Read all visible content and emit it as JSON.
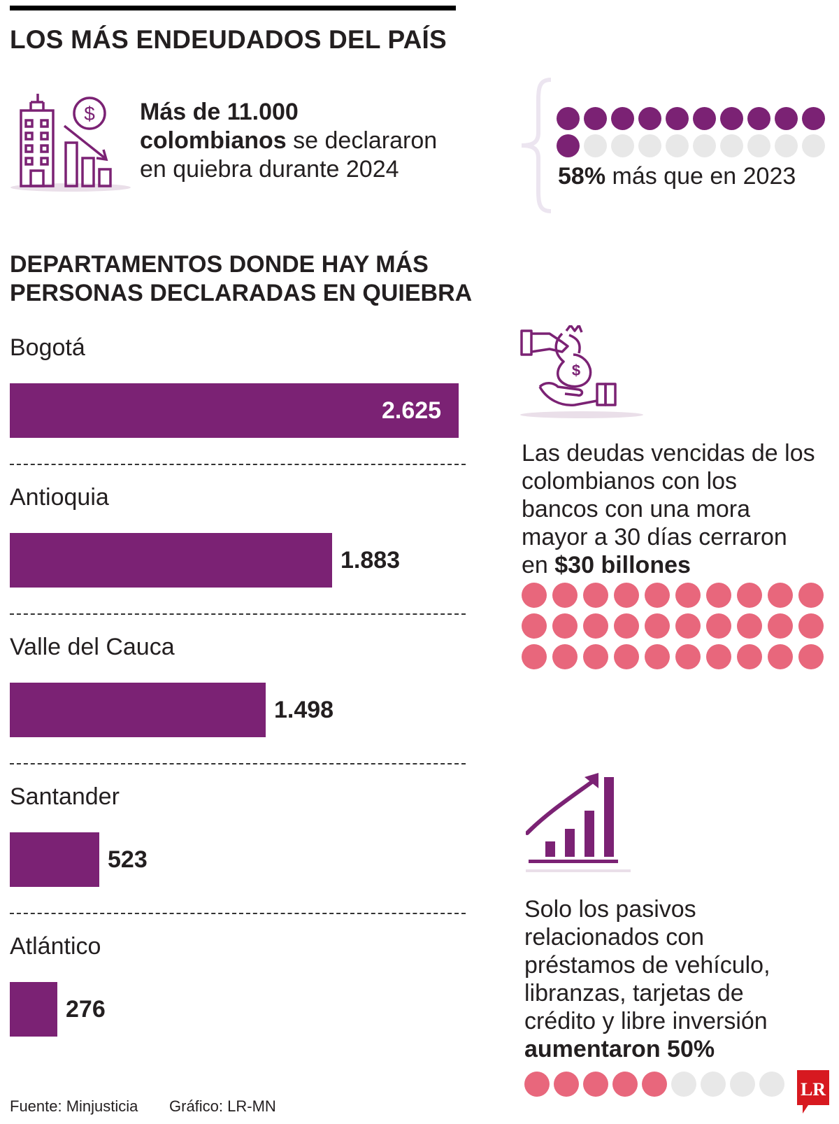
{
  "header": {
    "title": "LOS MÁS ENDEUDADOS DEL PAÍS"
  },
  "bankruptcy_stat": {
    "bold_line1": "Más de 11.000",
    "bold_line2": "colombianos",
    "rest_line2": " se declararon",
    "line3": "en quiebra durante 2024"
  },
  "increase_stat": {
    "bold": "58%",
    "rest": " más que en 2023",
    "dots_total": 20,
    "dots_filled": 11,
    "filled_color": "#7b2274",
    "empty_color": "#e8e8e8"
  },
  "chart_data": {
    "type": "bar",
    "title": "DEPARTAMENTOS DONDE HAY MÁS PERSONAS DECLARADAS EN QUIEBRA",
    "title_line1": "DEPARTAMENTOS DONDE HAY MÁS",
    "title_line2": "PERSONAS DECLARADAS EN QUIEBRA",
    "orientation": "horizontal",
    "categories": [
      "Bogotá",
      "Antioquia",
      "Valle del Cauca",
      "Santander",
      "Atlántico"
    ],
    "values": [
      2625,
      1883,
      1498,
      523,
      276
    ],
    "value_labels": [
      "2.625",
      "1.883",
      "1.498",
      "523",
      "276"
    ],
    "bar_color": "#7b2274",
    "xlim": [
      0,
      2625
    ]
  },
  "debt_stat": {
    "line1": "Las deudas vencidas de los",
    "line2": "colombianos con los",
    "line3": "bancos con una mora",
    "line4": "mayor a 30 días cerraron",
    "line5_plain": "en ",
    "line5_bold": "$30 billones",
    "dots_total": 30,
    "dot_color": "#e8677c",
    "icon": "hand-money-bag-icon"
  },
  "growth_stat": {
    "line1": "Solo los pasivos",
    "line2": "relacionados con",
    "line3": "préstamos de vehículo,",
    "line4": "libranzas, tarjetas de",
    "line5": "crédito y libre inversión",
    "line6_bold": "aumentaron 50%",
    "dots_total": 9,
    "dots_filled": 5,
    "filled_color": "#e8677c",
    "empty_color": "#e8e8e8",
    "icon": "growth-chart-icon"
  },
  "footer": {
    "source": "Fuente: Minjusticia",
    "credit": "Gráfico: LR-MN",
    "logo_text": "LR"
  }
}
